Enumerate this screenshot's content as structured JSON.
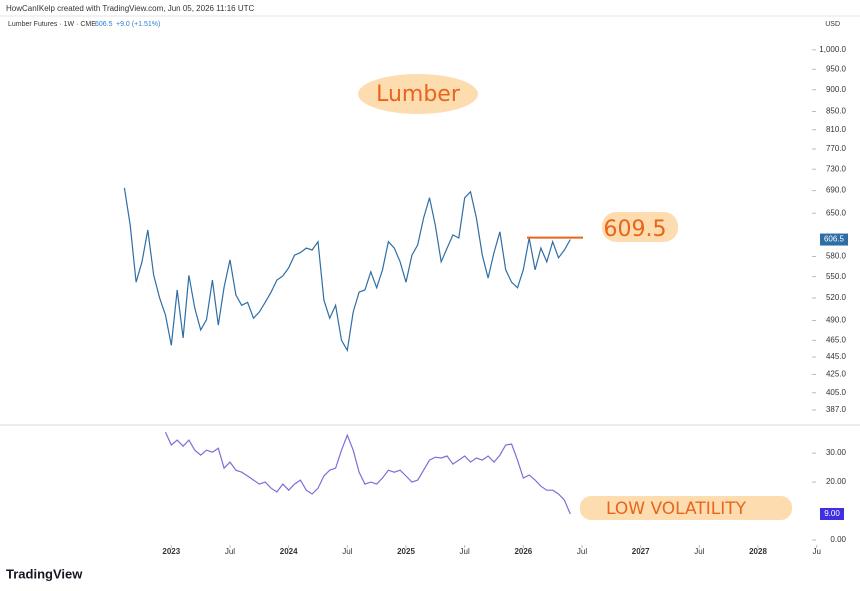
{
  "header": {
    "attribution": "HowCanIKelp created with TradingView.com, Jun 05, 2026 11:16 UTC",
    "currency": "USD",
    "change": "+9.0 (+1.51%)",
    "logo": "TradingView"
  },
  "annotations": {
    "title_note": "Lumber",
    "level": 609.5,
    "volatility_note": "LOW VOLATILITY"
  },
  "chart_data": [
    {
      "type": "line",
      "title": "Lumber Futures · 1W · CME",
      "log_scale": true,
      "color": "#2f6ea5",
      "xlim": [
        2021.54,
        2028.46
      ],
      "ylim": [
        372,
        1099
      ],
      "xticks": [
        {
          "value": 2023,
          "label": "2023"
        },
        {
          "value": 2023.5,
          "label": "Jul"
        },
        {
          "value": 2024,
          "label": "2024"
        },
        {
          "value": 2024.5,
          "label": "Jul"
        },
        {
          "value": 2025,
          "label": "2025"
        },
        {
          "value": 2025.5,
          "label": "Jul"
        },
        {
          "value": 2026,
          "label": "2026"
        },
        {
          "value": 2026.5,
          "label": "Jul"
        },
        {
          "value": 2027,
          "label": "2027"
        },
        {
          "value": 2027.5,
          "label": "Jul"
        },
        {
          "value": 2028,
          "label": "2028"
        },
        {
          "value": 2028.5,
          "label": "Ju"
        }
      ],
      "yticks": [
        {
          "value": 1000,
          "label": "1,000.0"
        },
        {
          "value": 950,
          "label": "950.0"
        },
        {
          "value": 900,
          "label": "900.0"
        },
        {
          "value": 850,
          "label": "850.0"
        },
        {
          "value": 810,
          "label": "810.0"
        },
        {
          "value": 770,
          "label": "770.0"
        },
        {
          "value": 730,
          "label": "730.0"
        },
        {
          "value": 690,
          "label": "690.0"
        },
        {
          "value": 650,
          "label": "650.0"
        },
        {
          "value": 580,
          "label": "580.0"
        },
        {
          "value": 550,
          "label": "550.0"
        },
        {
          "value": 520,
          "label": "520.0"
        },
        {
          "value": 490,
          "label": "490.0"
        },
        {
          "value": 465,
          "label": "465.0"
        },
        {
          "value": 445,
          "label": "445.0"
        },
        {
          "value": 425,
          "label": "425.0"
        },
        {
          "value": 405,
          "label": "405.0"
        },
        {
          "value": 387,
          "label": "387.0"
        }
      ],
      "x": [
        2022.6,
        2022.65,
        2022.7,
        2022.75,
        2022.8,
        2022.85,
        2022.9,
        2022.95,
        2023.0,
        2023.05,
        2023.1,
        2023.15,
        2023.2,
        2023.25,
        2023.3,
        2023.35,
        2023.4,
        2023.45,
        2023.5,
        2023.55,
        2023.6,
        2023.65,
        2023.7,
        2023.75,
        2023.8,
        2023.85,
        2023.9,
        2023.95,
        2024.0,
        2024.05,
        2024.1,
        2024.15,
        2024.2,
        2024.25,
        2024.3,
        2024.35,
        2024.4,
        2024.45,
        2024.5,
        2024.55,
        2024.6,
        2024.65,
        2024.7,
        2024.75,
        2024.8,
        2024.85,
        2024.9,
        2024.95,
        2025.0,
        2025.05,
        2025.1,
        2025.15,
        2025.2,
        2025.25,
        2025.3,
        2025.35,
        2025.4,
        2025.45,
        2025.5,
        2025.55,
        2025.6,
        2025.65,
        2025.7,
        2025.75,
        2025.8,
        2025.85,
        2025.9,
        2025.95,
        2026.0,
        2026.05,
        2026.1,
        2026.15,
        2026.2,
        2026.25,
        2026.3,
        2026.35,
        2026.4
      ],
      "values": [
        695,
        630,
        542,
        572,
        622,
        552,
        520,
        497,
        459,
        531,
        468,
        552,
        506,
        478,
        491,
        545,
        484,
        535,
        575,
        524,
        510,
        514,
        493,
        501,
        514,
        528,
        545,
        551,
        563,
        582,
        586,
        593,
        590,
        603,
        517,
        493,
        510,
        465,
        453,
        501,
        528,
        531,
        557,
        534,
        560,
        603,
        593,
        572,
        542,
        582,
        598,
        642,
        677,
        630,
        572,
        593,
        614,
        609,
        677,
        688,
        642,
        582,
        548,
        586,
        619,
        560,
        542,
        534,
        560,
        609,
        560,
        593,
        572,
        603,
        578,
        590,
        606.5
      ]
    },
    {
      "type": "line",
      "color": "#7b6fd8",
      "ylim": [
        -1.7,
        39.7
      ],
      "yticks": [
        {
          "value": 30,
          "label": "30.00"
        },
        {
          "value": 20,
          "label": "20.00"
        },
        {
          "value": 0,
          "label": "0.00"
        }
      ],
      "last_value_label": "9.00",
      "x": [
        2022.95,
        2023.0,
        2023.05,
        2023.1,
        2023.15,
        2023.2,
        2023.25,
        2023.3,
        2023.35,
        2023.4,
        2023.45,
        2023.5,
        2023.55,
        2023.6,
        2023.65,
        2023.7,
        2023.75,
        2023.8,
        2023.85,
        2023.9,
        2023.95,
        2024.0,
        2024.05,
        2024.1,
        2024.15,
        2024.2,
        2024.25,
        2024.3,
        2024.35,
        2024.4,
        2024.45,
        2024.5,
        2024.55,
        2024.6,
        2024.65,
        2024.7,
        2024.75,
        2024.8,
        2024.85,
        2024.9,
        2024.95,
        2025.0,
        2025.05,
        2025.1,
        2025.15,
        2025.2,
        2025.25,
        2025.3,
        2025.35,
        2025.4,
        2025.45,
        2025.5,
        2025.55,
        2025.6,
        2025.65,
        2025.7,
        2025.75,
        2025.8,
        2025.85,
        2025.9,
        2025.95,
        2026.0,
        2026.05,
        2026.1,
        2026.15,
        2026.2,
        2026.25,
        2026.3,
        2026.35,
        2026.4
      ],
      "values": [
        37.2,
        32.8,
        34.5,
        32.4,
        34.5,
        31.0,
        29.3,
        31.0,
        30.3,
        31.7,
        24.8,
        26.9,
        24.1,
        23.4,
        22.1,
        20.7,
        19.3,
        20.0,
        17.9,
        16.6,
        19.3,
        17.2,
        19.3,
        20.7,
        17.2,
        15.9,
        17.9,
        22.1,
        24.1,
        24.8,
        31.0,
        36.2,
        31.0,
        23.4,
        19.3,
        20.0,
        19.3,
        21.4,
        24.1,
        23.4,
        24.1,
        22.1,
        20.0,
        20.7,
        24.1,
        27.6,
        28.6,
        28.3,
        29.0,
        26.2,
        27.6,
        29.0,
        26.9,
        28.3,
        27.6,
        29.0,
        26.9,
        29.3,
        32.8,
        33.1,
        27.6,
        21.4,
        22.4,
        20.7,
        18.6,
        17.2,
        17.2,
        15.9,
        13.8,
        9.0
      ]
    }
  ]
}
